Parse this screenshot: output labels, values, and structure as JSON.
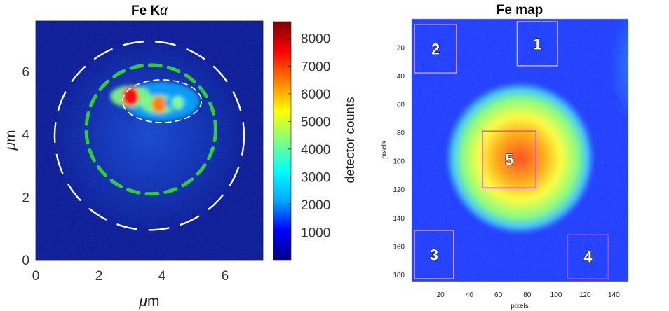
{
  "chart_data": [
    {
      "type": "heatmap",
      "title": "Fe K",
      "title_symbol": "α",
      "xlabel_symbol": "μ",
      "xlabel_unit": "m",
      "ylabel_symbol": "μ",
      "ylabel_unit": "m",
      "xlim": [
        0,
        7.2
      ],
      "ylim": [
        0,
        7.6
      ],
      "xticks": [
        0,
        2,
        4,
        6
      ],
      "yticks": [
        0,
        2,
        4,
        6
      ],
      "colorbar": {
        "label": "detector counts",
        "range": [
          0,
          8600
        ],
        "ticks": [
          1000,
          2000,
          3000,
          4000,
          5000,
          6000,
          7000,
          8000
        ],
        "colormap": [
          "#000080",
          "#0000ff",
          "#00aaff",
          "#00ffff",
          "#7fff7f",
          "#ffff00",
          "#ff8000",
          "#ff0000",
          "#800000"
        ]
      },
      "overlays": [
        {
          "kind": "dashed-circle",
          "color": "#ffffff",
          "center": [
            3.6,
            3.95
          ],
          "radius": 3.0
        },
        {
          "kind": "dashed-circle",
          "color": "#33cc33",
          "center": [
            3.65,
            4.15
          ],
          "radius": 2.05
        },
        {
          "kind": "dashed-outline",
          "color": "#ffffff",
          "center": [
            4.0,
            5.05
          ],
          "radius_x": 1.25,
          "radius_y": 0.68
        }
      ],
      "hotspots": [
        {
          "x": 3.0,
          "y": 5.2,
          "counts": 8000
        },
        {
          "x": 3.9,
          "y": 4.95,
          "counts": 6500
        },
        {
          "x": 4.5,
          "y": 5.0,
          "counts": 4000
        }
      ],
      "background_counts": 500
    },
    {
      "type": "heatmap",
      "title": "Fe map",
      "xlabel": "pixels",
      "ylabel": "pixels",
      "xlim": [
        0,
        150
      ],
      "ylim": [
        0,
        185
      ],
      "y_inverted": true,
      "xticks": [
        20,
        40,
        60,
        80,
        100,
        120,
        140
      ],
      "yticks": [
        20,
        40,
        60,
        80,
        100,
        120,
        140,
        160,
        180
      ],
      "colors": {
        "background": "#1e3cff",
        "particle_mid": "#3dc2ff",
        "particle_high": "#ffff33",
        "particle_core": "#ff4020"
      },
      "particle": {
        "center": [
          75,
          98
        ],
        "radius_x": 51,
        "radius_y": 53
      },
      "regions": [
        {
          "label": "1",
          "x0": 73,
          "y0": 2,
          "x1": 101,
          "y1": 33,
          "edge": "#f0c8a0"
        },
        {
          "label": "2",
          "x0": 2,
          "y0": 4,
          "x1": 31,
          "y1": 38,
          "edge": "#f0a0d0"
        },
        {
          "label": "3",
          "x0": 2,
          "y0": 149,
          "x1": 29,
          "y1": 183,
          "edge": "#f0a0d0"
        },
        {
          "label": "4",
          "x0": 108,
          "y0": 152,
          "x1": 136,
          "y1": 183,
          "edge": "#e040c0"
        },
        {
          "label": "5",
          "x0": 49,
          "y0": 79,
          "x1": 86,
          "y1": 119,
          "edge": "#e040c0"
        }
      ]
    }
  ]
}
